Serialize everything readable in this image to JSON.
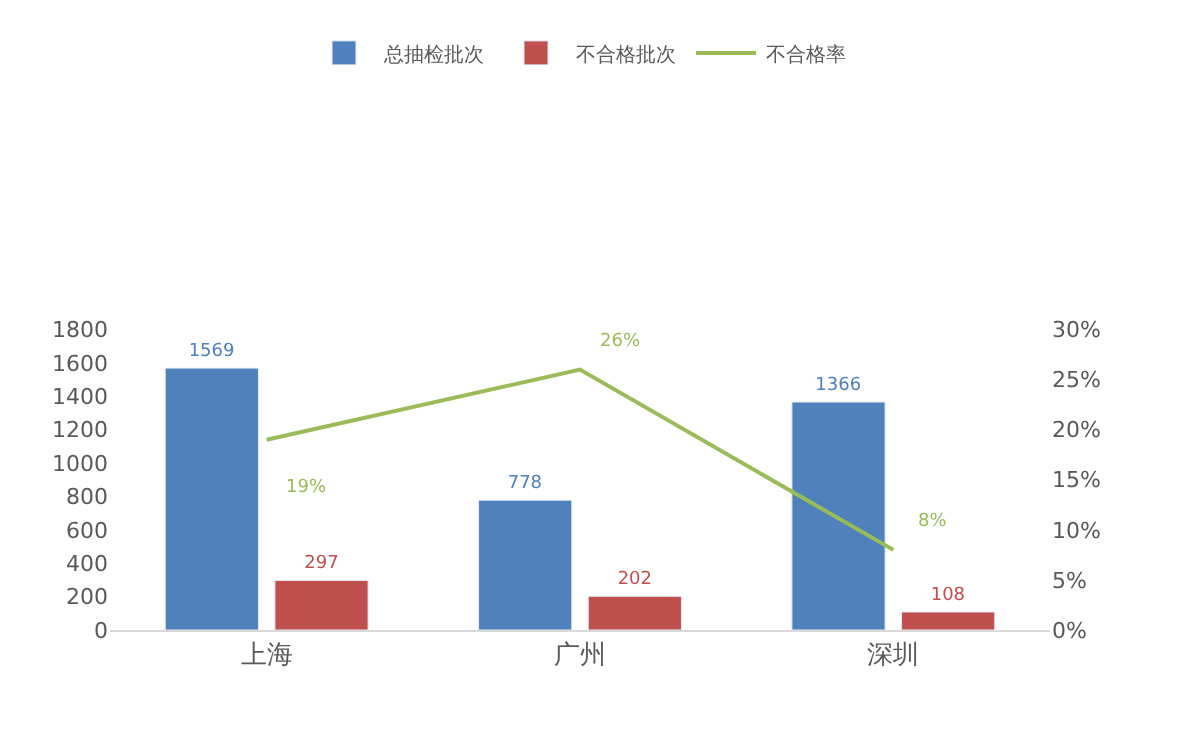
{
  "chart_data": {
    "type": "bar",
    "categories": [
      "上海",
      "广州",
      "深圳"
    ],
    "series": [
      {
        "name": "总抽检批次",
        "color": "#4f81bd",
        "values": [
          1569,
          778,
          1366
        ],
        "value_labels": [
          "1569",
          "778",
          "1366"
        ]
      },
      {
        "name": "不合格批次",
        "color": "#c0504d",
        "values": [
          297,
          202,
          108
        ],
        "value_labels": [
          "297",
          "202",
          "108"
        ]
      },
      {
        "name": "不合格率",
        "type": "line",
        "axis": "y2",
        "color": "#9bbb59",
        "values": [
          19,
          26,
          8
        ],
        "value_labels": [
          "19%",
          "26%",
          "8%"
        ]
      }
    ],
    "ylim": [
      0,
      1800
    ],
    "yticks": [
      0,
      200,
      400,
      600,
      800,
      1000,
      1200,
      1400,
      1600,
      1800
    ],
    "y2lim": [
      0,
      30
    ],
    "y2ticks": [
      {
        "value": 0,
        "label": "0%"
      },
      {
        "value": 5,
        "label": "5%"
      },
      {
        "value": 10,
        "label": "10%"
      },
      {
        "value": 15,
        "label": "15%"
      },
      {
        "value": 20,
        "label": "20%"
      },
      {
        "value": 25,
        "label": "25%"
      },
      {
        "value": 30,
        "label": "30%"
      }
    ],
    "legend": "top",
    "marker": "none",
    "line_style": "solid"
  }
}
